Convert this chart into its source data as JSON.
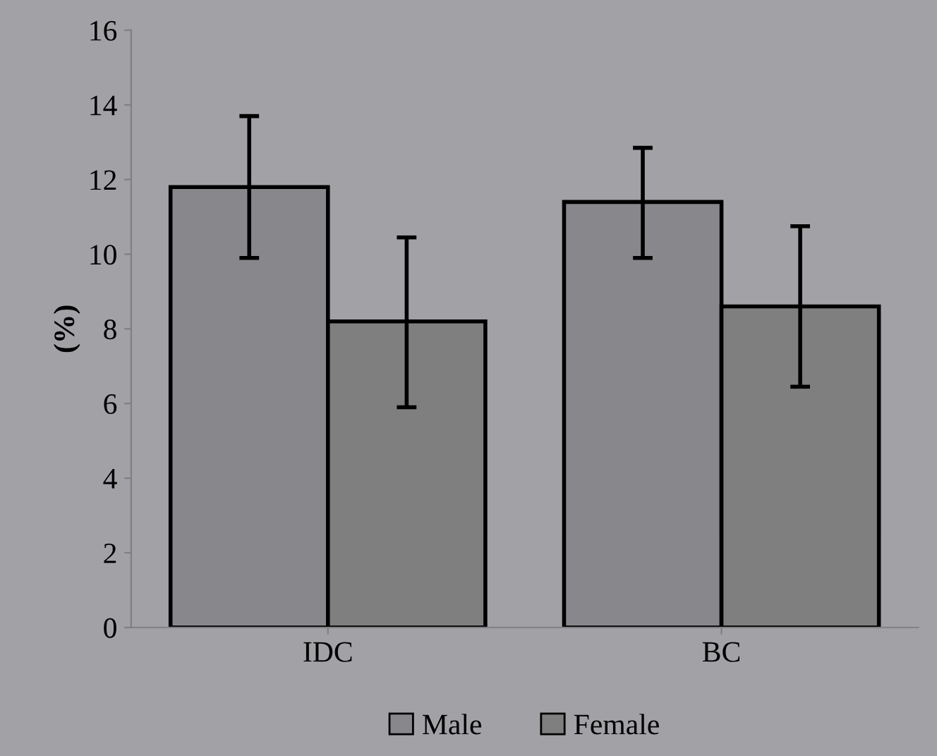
{
  "chart_data": {
    "type": "bar",
    "ylabel": "(%)",
    "categories": [
      "IDC",
      "BC"
    ],
    "series": [
      {
        "name": "Male",
        "color": "#88878c",
        "values": [
          11.8,
          11.4
        ],
        "errors": [
          [
            9.9,
            13.7
          ],
          [
            9.9,
            12.85
          ]
        ]
      },
      {
        "name": "Female",
        "color": "#7f7f7f",
        "values": [
          8.2,
          8.6
        ],
        "errors": [
          [
            5.9,
            10.45
          ],
          [
            6.45,
            10.75
          ]
        ]
      }
    ],
    "ylim": [
      0,
      16
    ],
    "yticks": [
      0,
      2,
      4,
      6,
      8,
      10,
      12,
      14,
      16
    ],
    "grid": false,
    "legend": "bottom"
  }
}
